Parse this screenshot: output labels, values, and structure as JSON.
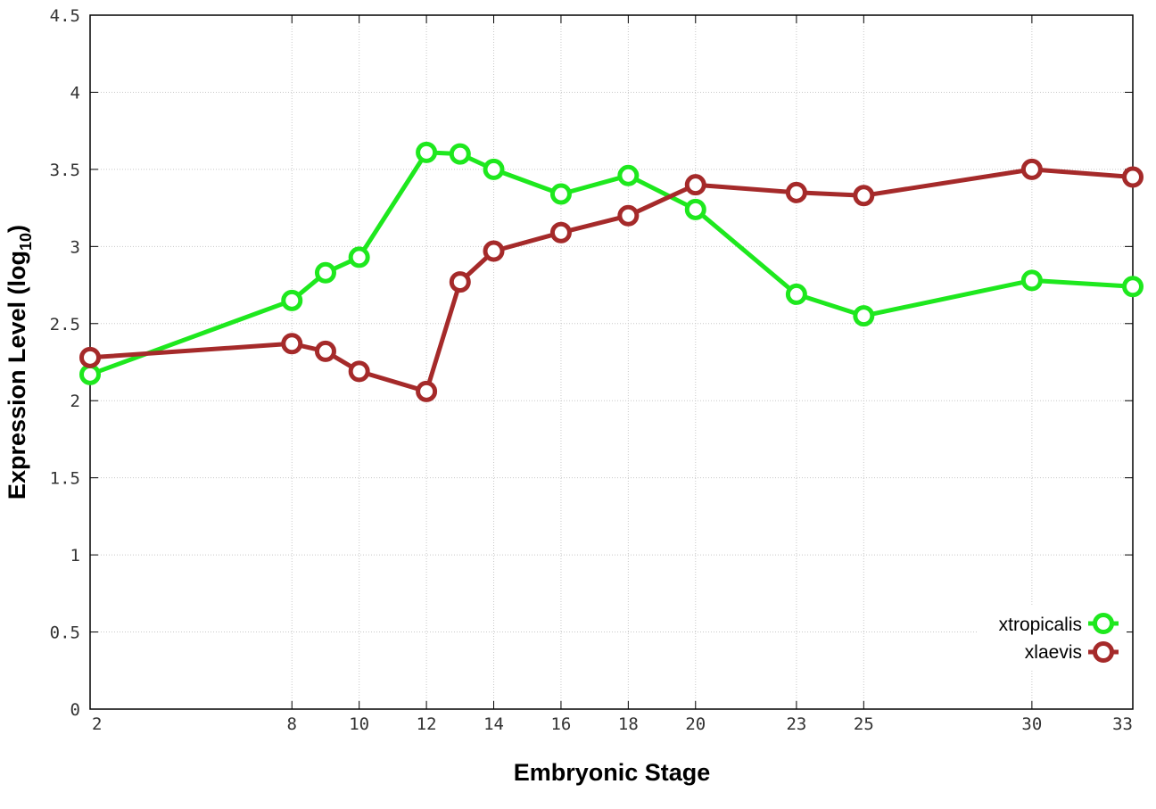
{
  "chart_data": {
    "type": "line",
    "xlabel": "Embryonic Stage",
    "ylabel_main": "Expression Level (log",
    "ylabel_sub": "10",
    "ylabel_close": ")",
    "xlim": [
      2,
      33
    ],
    "ylim": [
      0,
      4.5
    ],
    "grid": true,
    "legend_position": "bottom-right",
    "x_ticks": [
      2,
      8,
      10,
      12,
      14,
      16,
      18,
      20,
      23,
      25,
      30,
      33
    ],
    "y_ticks": [
      {
        "value": 0,
        "label": "0"
      },
      {
        "value": 0.5,
        "label": "0.5"
      },
      {
        "value": 1,
        "label": "1"
      },
      {
        "value": 1.5,
        "label": "1.5"
      },
      {
        "value": 2,
        "label": "2"
      },
      {
        "value": 2.5,
        "label": "2.5"
      },
      {
        "value": 3,
        "label": "3"
      },
      {
        "value": 3.5,
        "label": "3.5"
      },
      {
        "value": 4,
        "label": "4"
      },
      {
        "value": 4.5,
        "label": "4.5"
      }
    ],
    "series": [
      {
        "name": "xtropicalis",
        "color": "#1ee81e",
        "points": [
          {
            "x": 2,
            "y": 2.17
          },
          {
            "x": 8,
            "y": 2.65
          },
          {
            "x": 9,
            "y": 2.83
          },
          {
            "x": 10,
            "y": 2.93
          },
          {
            "x": 12,
            "y": 3.61
          },
          {
            "x": 13,
            "y": 3.6
          },
          {
            "x": 14,
            "y": 3.5
          },
          {
            "x": 16,
            "y": 3.34
          },
          {
            "x": 18,
            "y": 3.46
          },
          {
            "x": 20,
            "y": 3.24
          },
          {
            "x": 23,
            "y": 2.69
          },
          {
            "x": 25,
            "y": 2.55
          },
          {
            "x": 30,
            "y": 2.78
          },
          {
            "x": 33,
            "y": 2.74
          }
        ]
      },
      {
        "name": "xlaevis",
        "color": "#a52a2a",
        "points": [
          {
            "x": 2,
            "y": 2.28
          },
          {
            "x": 8,
            "y": 2.37
          },
          {
            "x": 9,
            "y": 2.32
          },
          {
            "x": 10,
            "y": 2.19
          },
          {
            "x": 12,
            "y": 2.06
          },
          {
            "x": 13,
            "y": 2.77
          },
          {
            "x": 14,
            "y": 2.97
          },
          {
            "x": 16,
            "y": 3.09
          },
          {
            "x": 18,
            "y": 3.2
          },
          {
            "x": 20,
            "y": 3.4
          },
          {
            "x": 23,
            "y": 3.35
          },
          {
            "x": 25,
            "y": 3.33
          },
          {
            "x": 30,
            "y": 3.5
          },
          {
            "x": 33,
            "y": 3.45
          }
        ]
      }
    ]
  }
}
